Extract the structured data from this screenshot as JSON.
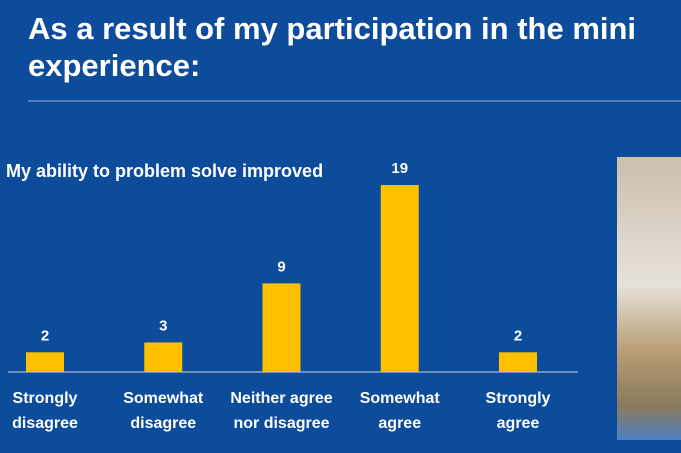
{
  "chart_data": {
    "type": "bar",
    "title_lines": [
      "As a result of my participation in the mini",
      "experience:"
    ],
    "subtitle": "My ability to problem solve improved",
    "categories": [
      "Strongly disagree",
      "Somewhat disagree",
      "Neither agree nor disagree",
      "Somewhat agree",
      "Strongly agree"
    ],
    "values": [
      2,
      3,
      9,
      19,
      2
    ],
    "color": "#ffc000"
  }
}
